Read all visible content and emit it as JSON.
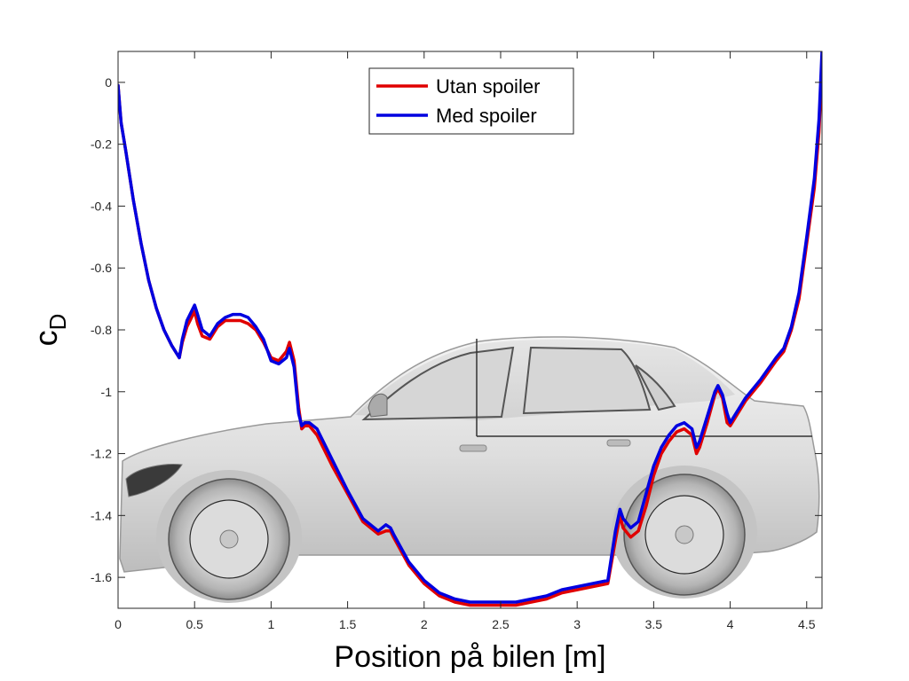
{
  "chart_data": {
    "type": "line",
    "title": "",
    "xlabel": "Position på bilen [m]",
    "ylabel_main": "c",
    "ylabel_sub": "D",
    "xlim": [
      0,
      4.6
    ],
    "ylim": [
      -1.7,
      0.1
    ],
    "xticks": [
      0,
      0.5,
      1,
      1.5,
      2,
      2.5,
      3,
      3.5,
      4,
      4.5
    ],
    "xtick_labels": [
      "0",
      "0.5",
      "1",
      "1.5",
      "2",
      "2.5",
      "3",
      "3.5",
      "4",
      "4.5"
    ],
    "yticks": [
      0,
      -0.2,
      -0.4,
      -0.6,
      -0.8,
      -1,
      -1.2,
      -1.4,
      -1.6
    ],
    "ytick_labels": [
      "0",
      "-0.2",
      "-0.4",
      "-0.6",
      "-0.8",
      "-1",
      "-1.2",
      "-1.4",
      "-1.6"
    ],
    "grid": false,
    "legend_position": "top-center",
    "background_image": "car-side-view",
    "series": [
      {
        "name": "Utan spoiler",
        "color": "#e00000",
        "x": [
          0,
          0.02,
          0.05,
          0.1,
          0.15,
          0.2,
          0.25,
          0.3,
          0.35,
          0.4,
          0.42,
          0.45,
          0.5,
          0.52,
          0.55,
          0.6,
          0.65,
          0.7,
          0.75,
          0.8,
          0.85,
          0.9,
          0.95,
          1.0,
          1.05,
          1.1,
          1.12,
          1.15,
          1.18,
          1.2,
          1.22,
          1.25,
          1.3,
          1.4,
          1.5,
          1.6,
          1.7,
          1.75,
          1.78,
          1.8,
          1.9,
          2.0,
          2.1,
          2.2,
          2.3,
          2.4,
          2.5,
          2.6,
          2.7,
          2.8,
          2.9,
          3.0,
          3.1,
          3.2,
          3.25,
          3.28,
          3.3,
          3.35,
          3.4,
          3.45,
          3.5,
          3.55,
          3.6,
          3.65,
          3.7,
          3.75,
          3.78,
          3.8,
          3.85,
          3.9,
          3.92,
          3.95,
          3.98,
          4.0,
          4.1,
          4.2,
          4.3,
          4.35,
          4.4,
          4.45,
          4.5,
          4.55,
          4.58,
          4.6
        ],
        "y": [
          -0.01,
          -0.13,
          -0.22,
          -0.38,
          -0.52,
          -0.64,
          -0.73,
          -0.8,
          -0.85,
          -0.89,
          -0.84,
          -0.79,
          -0.74,
          -0.78,
          -0.82,
          -0.83,
          -0.79,
          -0.77,
          -0.77,
          -0.77,
          -0.78,
          -0.8,
          -0.84,
          -0.89,
          -0.9,
          -0.87,
          -0.84,
          -0.9,
          -1.05,
          -1.12,
          -1.11,
          -1.11,
          -1.14,
          -1.24,
          -1.33,
          -1.42,
          -1.46,
          -1.45,
          -1.45,
          -1.47,
          -1.56,
          -1.62,
          -1.66,
          -1.68,
          -1.69,
          -1.69,
          -1.69,
          -1.69,
          -1.68,
          -1.67,
          -1.65,
          -1.64,
          -1.63,
          -1.62,
          -1.48,
          -1.4,
          -1.44,
          -1.47,
          -1.45,
          -1.37,
          -1.27,
          -1.2,
          -1.16,
          -1.13,
          -1.12,
          -1.14,
          -1.2,
          -1.18,
          -1.1,
          -1.01,
          -0.99,
          -1.02,
          -1.1,
          -1.11,
          -1.03,
          -0.97,
          -0.9,
          -0.87,
          -0.8,
          -0.7,
          -0.52,
          -0.34,
          -0.16,
          0.05
        ]
      },
      {
        "name": "Med spoiler",
        "color": "#0000e0",
        "x": [
          0,
          0.02,
          0.05,
          0.1,
          0.15,
          0.2,
          0.25,
          0.3,
          0.35,
          0.4,
          0.42,
          0.45,
          0.5,
          0.52,
          0.55,
          0.6,
          0.65,
          0.7,
          0.75,
          0.8,
          0.85,
          0.9,
          0.95,
          1.0,
          1.05,
          1.1,
          1.12,
          1.15,
          1.18,
          1.2,
          1.22,
          1.25,
          1.3,
          1.4,
          1.5,
          1.6,
          1.7,
          1.75,
          1.78,
          1.8,
          1.9,
          2.0,
          2.1,
          2.2,
          2.3,
          2.4,
          2.5,
          2.6,
          2.7,
          2.8,
          2.9,
          3.0,
          3.1,
          3.2,
          3.25,
          3.28,
          3.3,
          3.35,
          3.4,
          3.45,
          3.5,
          3.55,
          3.6,
          3.65,
          3.7,
          3.75,
          3.78,
          3.8,
          3.85,
          3.9,
          3.92,
          3.95,
          3.98,
          4.0,
          4.1,
          4.2,
          4.3,
          4.35,
          4.4,
          4.45,
          4.5,
          4.55,
          4.58,
          4.6
        ],
        "y": [
          -0.01,
          -0.13,
          -0.22,
          -0.38,
          -0.52,
          -0.64,
          -0.73,
          -0.8,
          -0.85,
          -0.89,
          -0.83,
          -0.77,
          -0.72,
          -0.75,
          -0.8,
          -0.82,
          -0.78,
          -0.76,
          -0.75,
          -0.75,
          -0.76,
          -0.79,
          -0.83,
          -0.9,
          -0.91,
          -0.89,
          -0.86,
          -0.92,
          -1.07,
          -1.11,
          -1.1,
          -1.1,
          -1.12,
          -1.22,
          -1.32,
          -1.41,
          -1.45,
          -1.43,
          -1.44,
          -1.46,
          -1.55,
          -1.61,
          -1.65,
          -1.67,
          -1.68,
          -1.68,
          -1.68,
          -1.68,
          -1.67,
          -1.66,
          -1.64,
          -1.63,
          -1.62,
          -1.61,
          -1.45,
          -1.38,
          -1.41,
          -1.44,
          -1.42,
          -1.33,
          -1.24,
          -1.18,
          -1.14,
          -1.11,
          -1.1,
          -1.12,
          -1.18,
          -1.16,
          -1.08,
          -1.0,
          -0.98,
          -1.01,
          -1.07,
          -1.1,
          -1.02,
          -0.96,
          -0.89,
          -0.86,
          -0.79,
          -0.68,
          -0.5,
          -0.31,
          -0.12,
          0.1
        ]
      }
    ]
  }
}
